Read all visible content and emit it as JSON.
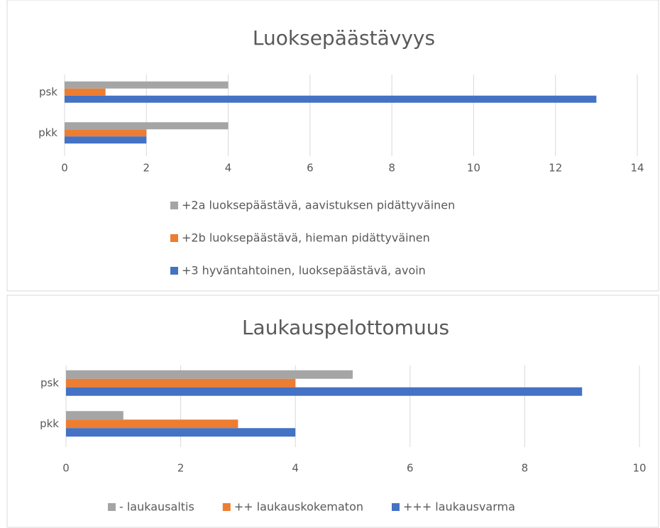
{
  "chart_data": [
    {
      "type": "bar",
      "orientation": "horizontal",
      "title": "Luoksepäästävyys",
      "categories": [
        "psk",
        "pkk"
      ],
      "series": [
        {
          "name": "+2a luoksepäästävä, aavistuksen pidättyväinen",
          "color": "#a5a5a5",
          "values": [
            4,
            4
          ]
        },
        {
          "name": "+2b luoksepäästävä, hieman pidättyväinen",
          "color": "#ed7d31",
          "values": [
            1,
            2
          ]
        },
        {
          "name": "+3 hyväntahtoinen, luoksepäästävä, avoin",
          "color": "#4472c4",
          "values": [
            13,
            2
          ]
        }
      ],
      "xlim": [
        0,
        14
      ],
      "xticks": [
        0,
        2,
        4,
        6,
        8,
        10,
        12,
        14
      ],
      "grid": true,
      "legend": "bottom-vertical"
    },
    {
      "type": "bar",
      "orientation": "horizontal",
      "title": "Laukauspelottomuus",
      "categories": [
        "psk",
        "pkk"
      ],
      "series": [
        {
          "name": "- laukausaltis",
          "color": "#a5a5a5",
          "values": [
            5,
            1
          ]
        },
        {
          "name": "++ laukauskokematon",
          "color": "#ed7d31",
          "values": [
            4,
            3
          ]
        },
        {
          "name": "+++ laukausvarma",
          "color": "#4472c4",
          "values": [
            9,
            4
          ]
        }
      ],
      "xlim": [
        0,
        10
      ],
      "xticks": [
        0,
        2,
        4,
        6,
        8,
        10
      ],
      "grid": true,
      "legend": "bottom-horizontal"
    }
  ]
}
